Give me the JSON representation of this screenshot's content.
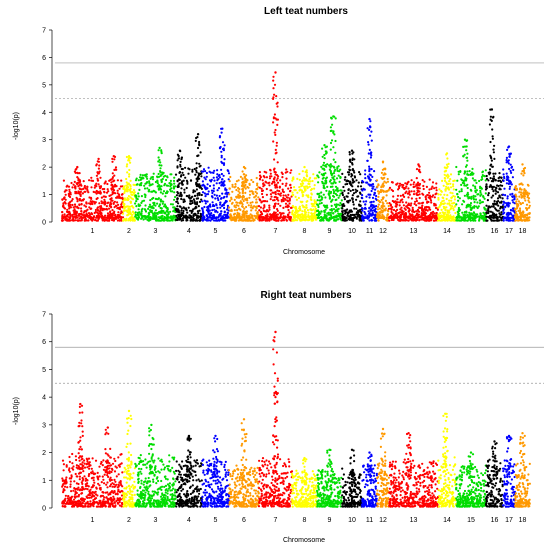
{
  "chart_data": [
    {
      "type": "scatter",
      "subtype": "manhattan",
      "title": "Left teat numbers",
      "xlabel": "Chromosome",
      "ylabel": "-log10(p)",
      "ylim": [
        0,
        7
      ],
      "yticks": [
        0,
        1,
        2,
        3,
        4,
        5,
        6,
        7
      ],
      "grid": false,
      "legend": "none",
      "thresholds": [
        {
          "value": 5.8,
          "style": "solid"
        },
        {
          "value": 4.5,
          "style": "dashed"
        }
      ],
      "chromosomes": [
        {
          "label": "1",
          "color": "#ff0000",
          "baseline_max": 1.5,
          "peaks": [
            {
              "pos": 0.25,
              "value": 2.0
            },
            {
              "pos": 0.6,
              "value": 2.3
            },
            {
              "pos": 0.85,
              "value": 2.4
            }
          ]
        },
        {
          "label": "2",
          "color": "#ffff00",
          "baseline_max": 1.6,
          "peaks": [
            {
              "pos": 0.5,
              "value": 2.4
            }
          ]
        },
        {
          "label": "3",
          "color": "#00dd00",
          "baseline_max": 1.7,
          "peaks": [
            {
              "pos": 0.6,
              "value": 2.7
            }
          ]
        },
        {
          "label": "4",
          "color": "#000000",
          "baseline_max": 1.9,
          "peaks": [
            {
              "pos": 0.15,
              "value": 2.6
            },
            {
              "pos": 0.85,
              "value": 3.2
            }
          ]
        },
        {
          "label": "5",
          "color": "#0000ff",
          "baseline_max": 1.9,
          "peaks": [
            {
              "pos": 0.75,
              "value": 3.4
            }
          ]
        },
        {
          "label": "6",
          "color": "#ff9900",
          "baseline_max": 1.5,
          "peaks": [
            {
              "pos": 0.5,
              "value": 2.0
            }
          ]
        },
        {
          "label": "7",
          "color": "#ff0000",
          "baseline_max": 1.8,
          "peaks": [
            {
              "pos": 0.5,
              "value": 5.45
            }
          ]
        },
        {
          "label": "8",
          "color": "#ffff00",
          "baseline_max": 1.6,
          "peaks": [
            {
              "pos": 0.5,
              "value": 2.0
            }
          ]
        },
        {
          "label": "9",
          "color": "#00dd00",
          "baseline_max": 2.0,
          "peaks": [
            {
              "pos": 0.3,
              "value": 2.8
            },
            {
              "pos": 0.65,
              "value": 3.85
            }
          ]
        },
        {
          "label": "10",
          "color": "#000000",
          "baseline_max": 1.8,
          "peaks": [
            {
              "pos": 0.5,
              "value": 2.6
            }
          ]
        },
        {
          "label": "11",
          "color": "#0000ff",
          "baseline_max": 1.8,
          "peaks": [
            {
              "pos": 0.5,
              "value": 3.75
            }
          ]
        },
        {
          "label": "12",
          "color": "#ff9900",
          "baseline_max": 1.5,
          "peaks": [
            {
              "pos": 0.5,
              "value": 2.2
            }
          ]
        },
        {
          "label": "13",
          "color": "#ff0000",
          "baseline_max": 1.4,
          "peaks": [
            {
              "pos": 0.6,
              "value": 2.1
            }
          ]
        },
        {
          "label": "14",
          "color": "#ffff00",
          "baseline_max": 1.6,
          "peaks": [
            {
              "pos": 0.5,
              "value": 2.5
            }
          ]
        },
        {
          "label": "15",
          "color": "#00dd00",
          "baseline_max": 1.9,
          "peaks": [
            {
              "pos": 0.3,
              "value": 3.0
            }
          ]
        },
        {
          "label": "16",
          "color": "#000000",
          "baseline_max": 1.8,
          "peaks": [
            {
              "pos": 0.35,
              "value": 4.1
            }
          ]
        },
        {
          "label": "17",
          "color": "#0000ff",
          "baseline_max": 1.9,
          "peaks": [
            {
              "pos": 0.5,
              "value": 2.75
            }
          ]
        },
        {
          "label": "18",
          "color": "#ff9900",
          "baseline_max": 1.3,
          "peaks": [
            {
              "pos": 0.5,
              "value": 2.1
            }
          ]
        }
      ]
    },
    {
      "type": "scatter",
      "subtype": "manhattan",
      "title": "Right teat numbers",
      "xlabel": "Chromosome",
      "ylabel": "-log10(p)",
      "ylim": [
        0,
        7
      ],
      "yticks": [
        0,
        1,
        2,
        3,
        4,
        5,
        6,
        7
      ],
      "grid": false,
      "legend": "none",
      "thresholds": [
        {
          "value": 5.8,
          "style": "solid"
        },
        {
          "value": 4.5,
          "style": "dashed"
        }
      ],
      "chromosomes": [
        {
          "label": "1",
          "color": "#ff0000",
          "baseline_max": 1.8,
          "peaks": [
            {
              "pos": 0.3,
              "value": 3.75
            },
            {
              "pos": 0.75,
              "value": 2.9
            }
          ]
        },
        {
          "label": "2",
          "color": "#ffff00",
          "baseline_max": 1.5,
          "peaks": [
            {
              "pos": 0.5,
              "value": 3.5
            }
          ]
        },
        {
          "label": "3",
          "color": "#00dd00",
          "baseline_max": 1.8,
          "peaks": [
            {
              "pos": 0.4,
              "value": 3.0
            }
          ]
        },
        {
          "label": "4",
          "color": "#000000",
          "baseline_max": 1.7,
          "peaks": [
            {
              "pos": 0.5,
              "value": 2.6
            }
          ]
        },
        {
          "label": "5",
          "color": "#0000ff",
          "baseline_max": 1.6,
          "peaks": [
            {
              "pos": 0.5,
              "value": 2.6
            }
          ]
        },
        {
          "label": "6",
          "color": "#ff9900",
          "baseline_max": 1.4,
          "peaks": [
            {
              "pos": 0.5,
              "value": 3.2
            }
          ]
        },
        {
          "label": "7",
          "color": "#ff0000",
          "baseline_max": 1.7,
          "peaks": [
            {
              "pos": 0.5,
              "value": 6.35
            }
          ]
        },
        {
          "label": "8",
          "color": "#ffff00",
          "baseline_max": 1.2,
          "peaks": [
            {
              "pos": 0.5,
              "value": 1.8
            }
          ]
        },
        {
          "label": "9",
          "color": "#00dd00",
          "baseline_max": 1.3,
          "peaks": [
            {
              "pos": 0.5,
              "value": 2.1
            }
          ]
        },
        {
          "label": "10",
          "color": "#000000",
          "baseline_max": 1.3,
          "peaks": [
            {
              "pos": 0.5,
              "value": 2.1
            }
          ]
        },
        {
          "label": "11",
          "color": "#0000ff",
          "baseline_max": 1.4,
          "peaks": [
            {
              "pos": 0.5,
              "value": 2.0
            }
          ]
        },
        {
          "label": "12",
          "color": "#ff9900",
          "baseline_max": 1.5,
          "peaks": [
            {
              "pos": 0.5,
              "value": 2.85
            }
          ]
        },
        {
          "label": "13",
          "color": "#ff0000",
          "baseline_max": 1.6,
          "peaks": [
            {
              "pos": 0.4,
              "value": 2.7
            }
          ]
        },
        {
          "label": "14",
          "color": "#ffff00",
          "baseline_max": 1.8,
          "peaks": [
            {
              "pos": 0.4,
              "value": 3.4
            }
          ]
        },
        {
          "label": "15",
          "color": "#00dd00",
          "baseline_max": 1.4,
          "peaks": [
            {
              "pos": 0.5,
              "value": 2.0
            }
          ]
        },
        {
          "label": "16",
          "color": "#000000",
          "baseline_max": 1.6,
          "peaks": [
            {
              "pos": 0.5,
              "value": 2.4
            }
          ]
        },
        {
          "label": "17",
          "color": "#0000ff",
          "baseline_max": 1.6,
          "peaks": [
            {
              "pos": 0.5,
              "value": 2.6
            }
          ]
        },
        {
          "label": "18",
          "color": "#ff9900",
          "baseline_max": 1.5,
          "peaks": [
            {
              "pos": 0.5,
              "value": 2.7
            }
          ]
        }
      ]
    }
  ]
}
